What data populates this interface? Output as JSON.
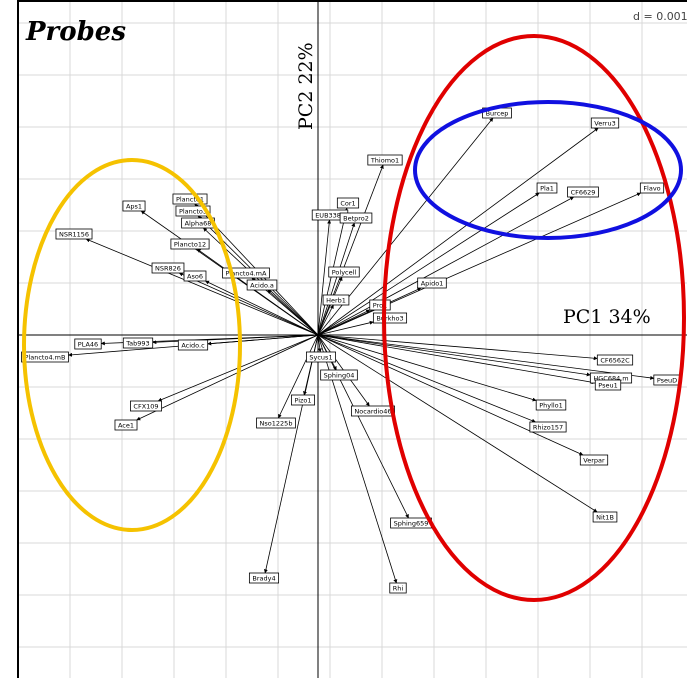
{
  "title": "Probes",
  "scale": "d = 0.001",
  "axes": {
    "x": "PC1 34%",
    "y": "PC2 22%"
  },
  "probes": [
    "Burcep",
    "Verru3",
    "Thiomo1",
    "Pla1",
    "CF6629",
    "Flavo",
    "Cor1",
    "EUB338II",
    "Betpro2",
    "Aps1",
    "Plancto1",
    "Plancto3",
    "Alpha68",
    "NSR1156",
    "Plancto12",
    "NSR826",
    "Aso6",
    "Plancto4.mA",
    "Acido.a",
    "Polycell",
    "Apido1",
    "Tab993",
    "PLA46",
    "Acido.c",
    "Plancto4.mB",
    "Herb1",
    "Pro1",
    "Burkho3",
    "CF6562C",
    "HGC684.m",
    "Pseu1",
    "PseuD",
    "Phyllo1",
    "Rhizo157",
    "Verpar",
    "Nit1B",
    "CFX109",
    "Ace1",
    "Sycus1",
    "Sphing04",
    "Pizo1",
    "Nocardio46",
    "Nso1225b",
    "Sphing659",
    "Brady4",
    "Rhi"
  ]
}
